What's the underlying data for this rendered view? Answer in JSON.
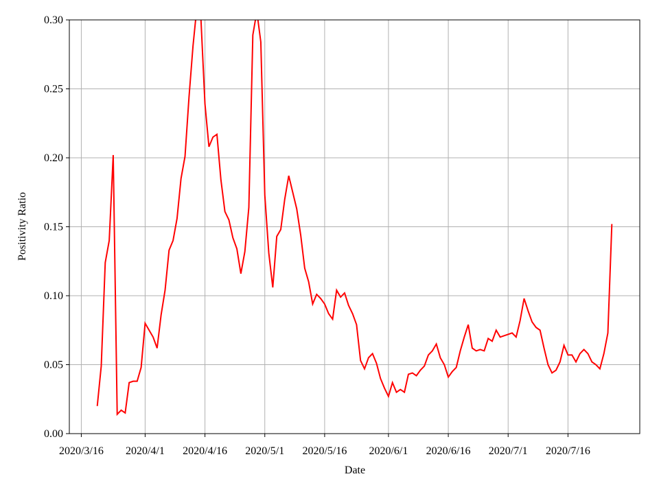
{
  "chart_data": {
    "type": "line",
    "xlabel": "Date",
    "ylabel": "Positivity Ratio",
    "x": [
      "2020/3/20",
      "2020/3/21",
      "2020/3/22",
      "2020/3/23",
      "2020/3/24",
      "2020/3/25",
      "2020/3/26",
      "2020/3/27",
      "2020/3/28",
      "2020/3/29",
      "2020/3/30",
      "2020/3/31",
      "2020/4/1",
      "2020/4/2",
      "2020/4/3",
      "2020/4/4",
      "2020/4/5",
      "2020/4/6",
      "2020/4/7",
      "2020/4/8",
      "2020/4/9",
      "2020/4/10",
      "2020/4/11",
      "2020/4/12",
      "2020/4/13",
      "2020/4/14",
      "2020/4/15",
      "2020/4/16",
      "2020/4/17",
      "2020/4/18",
      "2020/4/19",
      "2020/4/20",
      "2020/4/21",
      "2020/4/22",
      "2020/4/23",
      "2020/4/24",
      "2020/4/25",
      "2020/4/26",
      "2020/4/27",
      "2020/4/28",
      "2020/4/29",
      "2020/4/30",
      "2020/5/1",
      "2020/5/2",
      "2020/5/3",
      "2020/5/4",
      "2020/5/5",
      "2020/5/6",
      "2020/5/7",
      "2020/5/8",
      "2020/5/9",
      "2020/5/10",
      "2020/5/11",
      "2020/5/12",
      "2020/5/13",
      "2020/5/14",
      "2020/5/15",
      "2020/5/16",
      "2020/5/17",
      "2020/5/18",
      "2020/5/19",
      "2020/5/20",
      "2020/5/21",
      "2020/5/22",
      "2020/5/23",
      "2020/5/24",
      "2020/5/25",
      "2020/5/26",
      "2020/5/27",
      "2020/5/28",
      "2020/5/29",
      "2020/5/30",
      "2020/5/31",
      "2020/6/1",
      "2020/6/2",
      "2020/6/3",
      "2020/6/4",
      "2020/6/5",
      "2020/6/6",
      "2020/6/7",
      "2020/6/8",
      "2020/6/9",
      "2020/6/10",
      "2020/6/11",
      "2020/6/12",
      "2020/6/13",
      "2020/6/14",
      "2020/6/15",
      "2020/6/16",
      "2020/6/17",
      "2020/6/18",
      "2020/6/19",
      "2020/6/20",
      "2020/6/21",
      "2020/6/22",
      "2020/6/23",
      "2020/6/24",
      "2020/6/25",
      "2020/6/26",
      "2020/6/27",
      "2020/6/28",
      "2020/6/29",
      "2020/6/30",
      "2020/7/1",
      "2020/7/2",
      "2020/7/3",
      "2020/7/4",
      "2020/7/5",
      "2020/7/6",
      "2020/7/7",
      "2020/7/8",
      "2020/7/9",
      "2020/7/10",
      "2020/7/11",
      "2020/7/12",
      "2020/7/13",
      "2020/7/14",
      "2020/7/15",
      "2020/7/16",
      "2020/7/17",
      "2020/7/18",
      "2020/7/19",
      "2020/7/20",
      "2020/7/21",
      "2020/7/22",
      "2020/7/23",
      "2020/7/24",
      "2020/7/25",
      "2020/7/26",
      "2020/7/27"
    ],
    "values": [
      0.02,
      0.049,
      0.124,
      0.14,
      0.202,
      0.014,
      0.017,
      0.015,
      0.037,
      0.038,
      0.038,
      0.048,
      0.08,
      0.075,
      0.07,
      0.062,
      0.086,
      0.104,
      0.133,
      0.14,
      0.156,
      0.185,
      0.201,
      0.244,
      0.281,
      0.31,
      0.3,
      0.239,
      0.208,
      0.215,
      0.217,
      0.184,
      0.161,
      0.155,
      0.142,
      0.134,
      0.116,
      0.132,
      0.164,
      0.289,
      0.306,
      0.284,
      0.173,
      0.131,
      0.106,
      0.143,
      0.148,
      0.17,
      0.187,
      0.175,
      0.163,
      0.144,
      0.12,
      0.11,
      0.094,
      0.101,
      0.098,
      0.094,
      0.087,
      0.083,
      0.104,
      0.099,
      0.102,
      0.093,
      0.087,
      0.079,
      0.053,
      0.047,
      0.055,
      0.058,
      0.051,
      0.04,
      0.033,
      0.027,
      0.037,
      0.03,
      0.032,
      0.03,
      0.043,
      0.044,
      0.042,
      0.046,
      0.049,
      0.057,
      0.06,
      0.065,
      0.055,
      0.05,
      0.041,
      0.045,
      0.048,
      0.06,
      0.07,
      0.079,
      0.062,
      0.06,
      0.061,
      0.06,
      0.069,
      0.067,
      0.075,
      0.07,
      0.071,
      0.072,
      0.073,
      0.07,
      0.082,
      0.098,
      0.089,
      0.081,
      0.077,
      0.075,
      0.062,
      0.05,
      0.044,
      0.046,
      0.052,
      0.064,
      0.057,
      0.057,
      0.052,
      0.058,
      0.061,
      0.058,
      0.052,
      0.05,
      0.047,
      0.058,
      0.073,
      0.152
    ],
    "color": "#ff0000",
    "xlim": [
      "2020/3/13",
      "2020/8/3"
    ],
    "xticks": [
      "2020/3/16",
      "2020/4/1",
      "2020/4/16",
      "2020/5/1",
      "2020/5/16",
      "2020/6/1",
      "2020/6/16",
      "2020/7/1",
      "2020/7/16"
    ],
    "ylim": [
      0,
      0.3
    ],
    "yticks": [
      {
        "value": 0,
        "label": "0.00"
      },
      {
        "value": 0.05,
        "label": "0.05"
      },
      {
        "value": 0.1,
        "label": "0.10"
      },
      {
        "value": 0.15,
        "label": "0.15"
      },
      {
        "value": 0.2,
        "label": "0.20"
      },
      {
        "value": 0.25,
        "label": "0.25"
      },
      {
        "value": 0.3,
        "label": "0.30"
      }
    ],
    "grid": true
  }
}
